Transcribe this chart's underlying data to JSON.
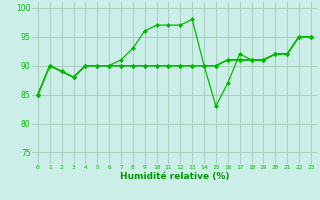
{
  "background_color": "#cceee8",
  "grid_color": "#aaccbb",
  "line_color": "#00bb00",
  "xlabel": "Humidité relative (%)",
  "xlabel_color": "#009900",
  "xlim": [
    -0.5,
    23.5
  ],
  "ylim": [
    73,
    101
  ],
  "yticks": [
    75,
    80,
    85,
    90,
    95,
    100
  ],
  "xticks": [
    0,
    1,
    2,
    3,
    4,
    5,
    6,
    7,
    8,
    9,
    10,
    11,
    12,
    13,
    14,
    15,
    16,
    17,
    18,
    19,
    20,
    21,
    22,
    23
  ],
  "series": [
    [
      85,
      90,
      89,
      88,
      90,
      90,
      90,
      91,
      93,
      96,
      97,
      97,
      97,
      98,
      90,
      83,
      87,
      92,
      91,
      91,
      92,
      92,
      95,
      95
    ],
    [
      85,
      90,
      89,
      88,
      90,
      90,
      90,
      90,
      90,
      90,
      90,
      90,
      90,
      90,
      90,
      90,
      91,
      91,
      91,
      91,
      92,
      92,
      95,
      95
    ],
    [
      85,
      90,
      89,
      88,
      90,
      90,
      90,
      90,
      90,
      90,
      90,
      90,
      90,
      90,
      90,
      90,
      91,
      91,
      91,
      91,
      92,
      92,
      95,
      95
    ],
    [
      85,
      90,
      89,
      88,
      90,
      90,
      90,
      90,
      90,
      90,
      90,
      90,
      90,
      90,
      90,
      90,
      91,
      91,
      91,
      91,
      92,
      92,
      95,
      95
    ]
  ]
}
